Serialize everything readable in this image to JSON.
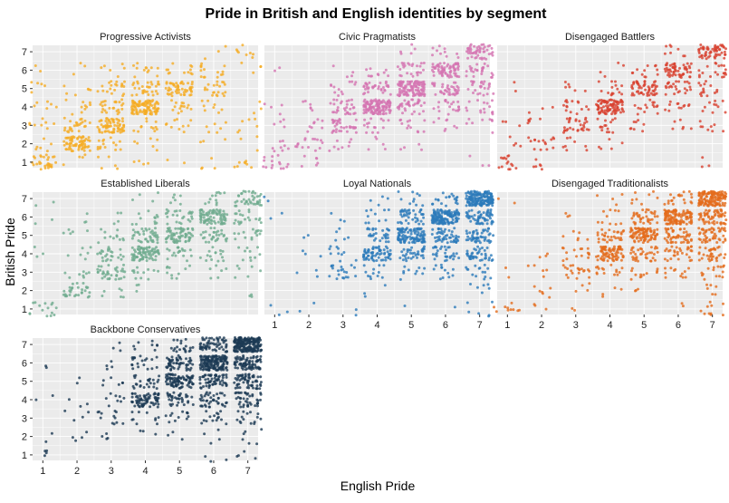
{
  "chart_data": {
    "type": "scatter",
    "title": "Pride in British and English identities by segment",
    "xlabel": "English Pride",
    "ylabel": "British Pride",
    "xlim": [
      0.7,
      7.3
    ],
    "ylim": [
      0.7,
      7.35
    ],
    "ticks": [
      "1",
      "2",
      "3",
      "4",
      "5",
      "6",
      "7"
    ],
    "grid": true,
    "jitter": 0.4,
    "note": "points are jittered responses; cells give [english, british, approx count]",
    "facets": [
      {
        "name": "Progressive Activists",
        "color": "#f5ac25",
        "cells": [
          [
            1,
            1,
            30
          ],
          [
            1,
            2,
            6
          ],
          [
            1,
            3,
            8
          ],
          [
            1,
            4,
            6
          ],
          [
            1,
            5,
            5
          ],
          [
            1,
            6,
            2
          ],
          [
            2,
            1,
            4
          ],
          [
            2,
            2,
            70
          ],
          [
            2,
            3,
            25
          ],
          [
            2,
            4,
            10
          ],
          [
            2,
            5,
            6
          ],
          [
            2,
            6,
            3
          ],
          [
            3,
            1,
            5
          ],
          [
            3,
            2,
            15
          ],
          [
            3,
            3,
            70
          ],
          [
            3,
            4,
            25
          ],
          [
            3,
            5,
            20
          ],
          [
            3,
            6,
            6
          ],
          [
            4,
            1,
            4
          ],
          [
            4,
            2,
            6
          ],
          [
            4,
            3,
            12
          ],
          [
            4,
            4,
            100
          ],
          [
            4,
            5,
            30
          ],
          [
            4,
            6,
            12
          ],
          [
            5,
            1,
            2
          ],
          [
            5,
            3,
            10
          ],
          [
            5,
            4,
            15
          ],
          [
            5,
            5,
            55
          ],
          [
            5,
            6,
            12
          ],
          [
            6,
            1,
            4
          ],
          [
            6,
            2,
            3
          ],
          [
            6,
            3,
            6
          ],
          [
            6,
            4,
            8
          ],
          [
            6,
            5,
            20
          ],
          [
            6,
            6,
            15
          ],
          [
            6,
            7,
            3
          ],
          [
            7,
            1,
            8
          ],
          [
            7,
            2,
            3
          ],
          [
            7,
            3,
            6
          ],
          [
            7,
            4,
            3
          ],
          [
            7,
            6,
            4
          ],
          [
            7,
            7,
            8
          ]
        ]
      },
      {
        "name": "Civic Pragmatists",
        "color": "#d474b2",
        "cells": [
          [
            1,
            1,
            15
          ],
          [
            1,
            2,
            8
          ],
          [
            1,
            3,
            4
          ],
          [
            1,
            4,
            4
          ],
          [
            1,
            6,
            2
          ],
          [
            2,
            1,
            6
          ],
          [
            2,
            2,
            15
          ],
          [
            2,
            3,
            8
          ],
          [
            2,
            4,
            6
          ],
          [
            3,
            2,
            8
          ],
          [
            3,
            3,
            35
          ],
          [
            3,
            4,
            30
          ],
          [
            3,
            5,
            12
          ],
          [
            3,
            6,
            4
          ],
          [
            4,
            2,
            5
          ],
          [
            4,
            3,
            15
          ],
          [
            4,
            4,
            120
          ],
          [
            4,
            5,
            35
          ],
          [
            4,
            6,
            10
          ],
          [
            5,
            2,
            4
          ],
          [
            5,
            3,
            12
          ],
          [
            5,
            4,
            35
          ],
          [
            5,
            5,
            110
          ],
          [
            5,
            6,
            25
          ],
          [
            5,
            7,
            5
          ],
          [
            6,
            3,
            8
          ],
          [
            6,
            4,
            20
          ],
          [
            6,
            5,
            40
          ],
          [
            6,
            6,
            70
          ],
          [
            6,
            7,
            10
          ],
          [
            7,
            1,
            3
          ],
          [
            7,
            3,
            8
          ],
          [
            7,
            4,
            15
          ],
          [
            7,
            5,
            25
          ],
          [
            7,
            6,
            25
          ],
          [
            7,
            7,
            50
          ]
        ]
      },
      {
        "name": "Disengaged Battlers",
        "color": "#d8412f",
        "cells": [
          [
            1,
            1,
            15
          ],
          [
            1,
            2,
            4
          ],
          [
            1,
            3,
            3
          ],
          [
            1,
            5,
            2
          ],
          [
            2,
            1,
            6
          ],
          [
            2,
            2,
            15
          ],
          [
            2,
            3,
            6
          ],
          [
            2,
            4,
            3
          ],
          [
            3,
            2,
            8
          ],
          [
            3,
            3,
            30
          ],
          [
            3,
            4,
            15
          ],
          [
            3,
            5,
            6
          ],
          [
            4,
            2,
            5
          ],
          [
            4,
            3,
            15
          ],
          [
            4,
            4,
            90
          ],
          [
            4,
            5,
            15
          ],
          [
            4,
            6,
            4
          ],
          [
            5,
            3,
            8
          ],
          [
            5,
            4,
            15
          ],
          [
            5,
            5,
            55
          ],
          [
            5,
            6,
            12
          ],
          [
            6,
            3,
            6
          ],
          [
            6,
            4,
            12
          ],
          [
            6,
            5,
            25
          ],
          [
            6,
            6,
            55
          ],
          [
            6,
            7,
            8
          ],
          [
            7,
            1,
            3
          ],
          [
            7,
            3,
            8
          ],
          [
            7,
            4,
            10
          ],
          [
            7,
            5,
            15
          ],
          [
            7,
            6,
            20
          ],
          [
            7,
            7,
            60
          ]
        ]
      },
      {
        "name": "Established Liberals",
        "color": "#6fab8f",
        "cells": [
          [
            1,
            1,
            15
          ],
          [
            1,
            4,
            3
          ],
          [
            1,
            6,
            2
          ],
          [
            1,
            7,
            2
          ],
          [
            2,
            2,
            30
          ],
          [
            2,
            3,
            8
          ],
          [
            2,
            4,
            6
          ],
          [
            2,
            5,
            5
          ],
          [
            2,
            6,
            3
          ],
          [
            3,
            2,
            6
          ],
          [
            3,
            3,
            35
          ],
          [
            3,
            4,
            25
          ],
          [
            3,
            5,
            12
          ],
          [
            3,
            6,
            4
          ],
          [
            4,
            2,
            3
          ],
          [
            4,
            3,
            12
          ],
          [
            4,
            4,
            80
          ],
          [
            4,
            5,
            40
          ],
          [
            4,
            6,
            12
          ],
          [
            4,
            7,
            4
          ],
          [
            5,
            3,
            10
          ],
          [
            5,
            4,
            20
          ],
          [
            5,
            5,
            70
          ],
          [
            5,
            6,
            25
          ],
          [
            5,
            7,
            6
          ],
          [
            6,
            3,
            6
          ],
          [
            6,
            4,
            15
          ],
          [
            6,
            5,
            30
          ],
          [
            6,
            6,
            80
          ],
          [
            6,
            7,
            12
          ],
          [
            7,
            2,
            3
          ],
          [
            7,
            3,
            6
          ],
          [
            7,
            4,
            10
          ],
          [
            7,
            5,
            15
          ],
          [
            7,
            6,
            20
          ],
          [
            7,
            7,
            40
          ]
        ]
      },
      {
        "name": "Loyal Nationals",
        "color": "#2c7bba",
        "cells": [
          [
            1,
            1,
            3
          ],
          [
            1,
            6,
            2
          ],
          [
            1,
            7,
            2
          ],
          [
            2,
            1,
            2
          ],
          [
            2,
            3,
            3
          ],
          [
            2,
            4,
            3
          ],
          [
            2,
            5,
            2
          ],
          [
            3,
            1,
            2
          ],
          [
            3,
            3,
            20
          ],
          [
            3,
            4,
            10
          ],
          [
            3,
            5,
            5
          ],
          [
            3,
            6,
            3
          ],
          [
            4,
            2,
            3
          ],
          [
            4,
            3,
            12
          ],
          [
            4,
            4,
            70
          ],
          [
            4,
            5,
            30
          ],
          [
            4,
            6,
            10
          ],
          [
            4,
            7,
            4
          ],
          [
            5,
            1,
            1
          ],
          [
            5,
            3,
            10
          ],
          [
            5,
            4,
            35
          ],
          [
            5,
            5,
            110
          ],
          [
            5,
            6,
            40
          ],
          [
            5,
            7,
            10
          ],
          [
            6,
            1,
            1
          ],
          [
            6,
            3,
            12
          ],
          [
            6,
            4,
            30
          ],
          [
            6,
            5,
            50
          ],
          [
            6,
            6,
            140
          ],
          [
            6,
            7,
            20
          ],
          [
            7,
            1,
            6
          ],
          [
            7,
            2,
            6
          ],
          [
            7,
            3,
            15
          ],
          [
            7,
            4,
            40
          ],
          [
            7,
            5,
            50
          ],
          [
            7,
            6,
            60
          ],
          [
            7,
            7,
            160
          ]
        ]
      },
      {
        "name": "Disengaged Traditionalists",
        "color": "#e36b1c",
        "cells": [
          [
            1,
            1,
            10
          ],
          [
            1,
            3,
            2
          ],
          [
            1,
            7,
            2
          ],
          [
            2,
            1,
            3
          ],
          [
            2,
            2,
            6
          ],
          [
            2,
            3,
            5
          ],
          [
            2,
            4,
            3
          ],
          [
            3,
            1,
            2
          ],
          [
            3,
            2,
            4
          ],
          [
            3,
            3,
            20
          ],
          [
            3,
            4,
            15
          ],
          [
            3,
            5,
            6
          ],
          [
            3,
            6,
            3
          ],
          [
            4,
            2,
            4
          ],
          [
            4,
            3,
            15
          ],
          [
            4,
            4,
            80
          ],
          [
            4,
            5,
            30
          ],
          [
            4,
            6,
            10
          ],
          [
            4,
            7,
            4
          ],
          [
            5,
            2,
            3
          ],
          [
            5,
            3,
            12
          ],
          [
            5,
            4,
            35
          ],
          [
            5,
            5,
            90
          ],
          [
            5,
            6,
            35
          ],
          [
            5,
            7,
            8
          ],
          [
            6,
            1,
            2
          ],
          [
            6,
            3,
            12
          ],
          [
            6,
            4,
            30
          ],
          [
            6,
            5,
            50
          ],
          [
            6,
            6,
            110
          ],
          [
            6,
            7,
            20
          ],
          [
            7,
            1,
            10
          ],
          [
            7,
            2,
            6
          ],
          [
            7,
            3,
            15
          ],
          [
            7,
            4,
            35
          ],
          [
            7,
            5,
            50
          ],
          [
            7,
            6,
            60
          ],
          [
            7,
            7,
            140
          ]
        ]
      },
      {
        "name": "Backbone Conservatives",
        "color": "#1c3954",
        "cells": [
          [
            1,
            1,
            4
          ],
          [
            1,
            2,
            2
          ],
          [
            1,
            4,
            2
          ],
          [
            1,
            6,
            2
          ],
          [
            2,
            2,
            4
          ],
          [
            2,
            3,
            4
          ],
          [
            2,
            4,
            3
          ],
          [
            2,
            5,
            2
          ],
          [
            3,
            2,
            4
          ],
          [
            3,
            3,
            12
          ],
          [
            3,
            4,
            8
          ],
          [
            3,
            5,
            6
          ],
          [
            3,
            6,
            4
          ],
          [
            3,
            7,
            3
          ],
          [
            4,
            2,
            3
          ],
          [
            4,
            3,
            10
          ],
          [
            4,
            4,
            70
          ],
          [
            4,
            5,
            25
          ],
          [
            4,
            6,
            20
          ],
          [
            4,
            7,
            8
          ],
          [
            5,
            2,
            3
          ],
          [
            5,
            3,
            12
          ],
          [
            5,
            4,
            35
          ],
          [
            5,
            5,
            90
          ],
          [
            5,
            6,
            55
          ],
          [
            5,
            7,
            20
          ],
          [
            6,
            1,
            3
          ],
          [
            6,
            2,
            4
          ],
          [
            6,
            3,
            15
          ],
          [
            6,
            4,
            40
          ],
          [
            6,
            5,
            60
          ],
          [
            6,
            6,
            160
          ],
          [
            6,
            7,
            60
          ],
          [
            7,
            1,
            4
          ],
          [
            7,
            2,
            6
          ],
          [
            7,
            3,
            15
          ],
          [
            7,
            4,
            40
          ],
          [
            7,
            5,
            60
          ],
          [
            7,
            6,
            80
          ],
          [
            7,
            7,
            200
          ]
        ]
      }
    ]
  }
}
